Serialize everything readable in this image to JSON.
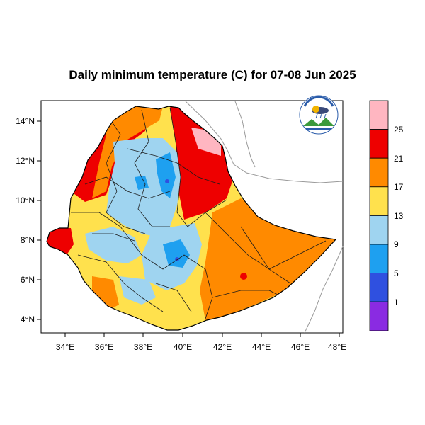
{
  "title": "Daily minimum temperature (C) for 07-08 Jun 2025",
  "axes": {
    "x_ticks": [
      "34°E",
      "36°E",
      "38°E",
      "40°E",
      "42°E",
      "44°E",
      "46°E",
      "48°E"
    ],
    "y_ticks": [
      "14°N",
      "12°N",
      "10°N",
      "8°N",
      "6°N",
      "4°N"
    ],
    "lon_range": [
      32.9,
      48.2
    ],
    "lat_range": [
      3.2,
      15.1
    ]
  },
  "legend": {
    "levels": [
      "25",
      "21",
      "17",
      "13",
      "9",
      "5",
      "1"
    ],
    "colors": [
      "#ffb6c1",
      "#ee0000",
      "#ff8a00",
      "#ffe14d",
      "#9fd4f0",
      "#1ea0f0",
      "#2f50e0",
      "#8a2be2"
    ]
  },
  "logo": {
    "text_top": "Ethiopian Meteorology Institute",
    "text_bottom": "Ethiopian Meteorology Institute"
  }
}
